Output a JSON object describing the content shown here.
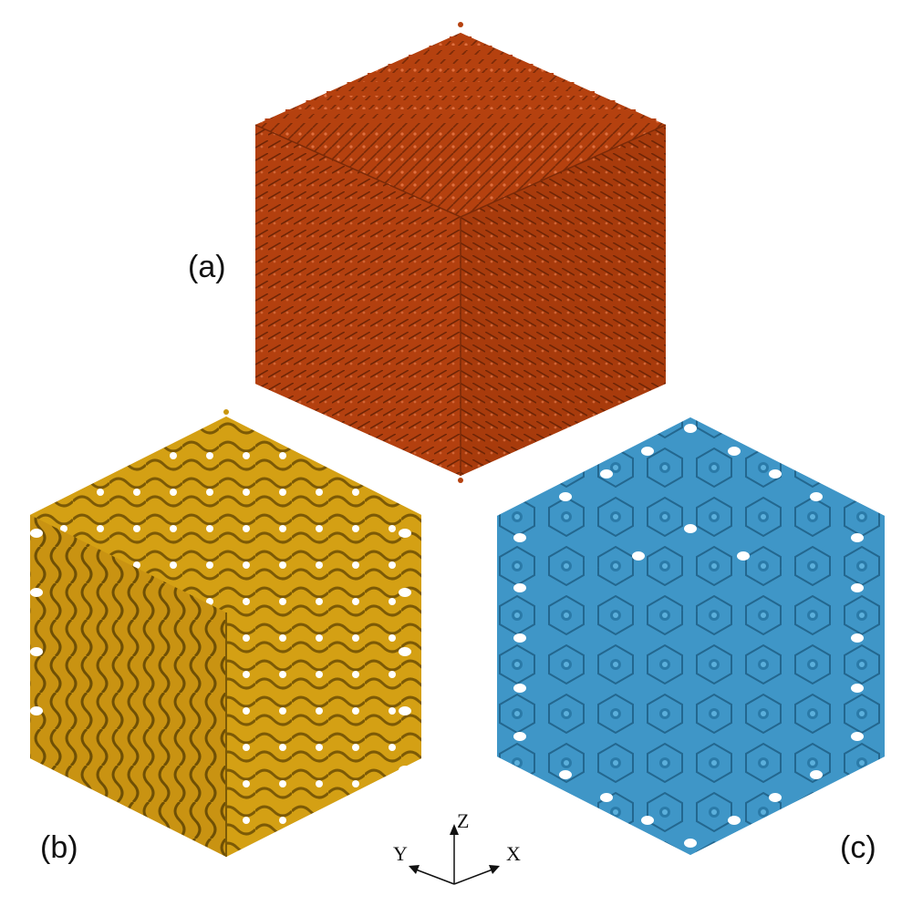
{
  "figure": {
    "panels": [
      {
        "id": "a",
        "label": "(a)",
        "color": "#b5410f",
        "edge_color": "#7a2a08"
      },
      {
        "id": "b",
        "label": "(b)",
        "color": "#c9960f",
        "edge_color": "#8a6508"
      },
      {
        "id": "c",
        "label": "(c)",
        "color": "#3e93c4",
        "edge_color": "#1f5f86"
      }
    ],
    "axes": {
      "z": "Z",
      "y": "Y",
      "x": "X"
    }
  }
}
